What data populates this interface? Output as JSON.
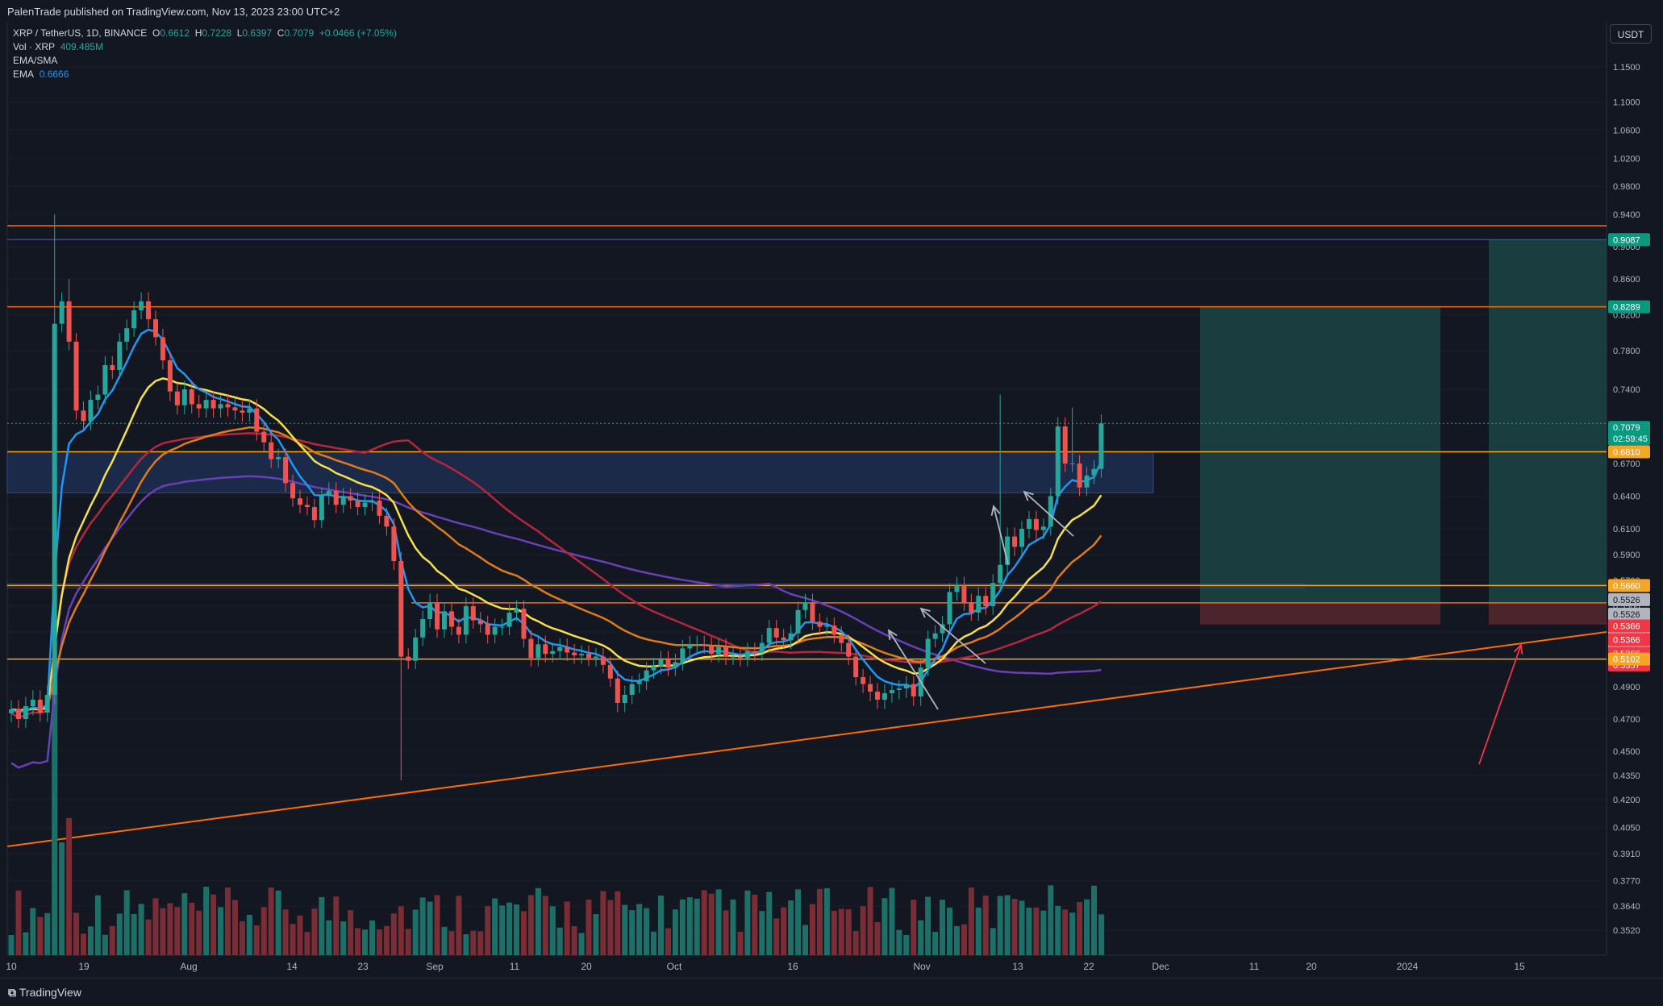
{
  "header": {
    "published": "PalenTrade published on TradingView.com, Nov 13, 2023 23:00 UTC+2"
  },
  "legend": {
    "symbol": "XRP / TetherUS, 1D, BINANCE",
    "o_label": "O",
    "o": "0.6612",
    "h_label": "H",
    "h": "0.7228",
    "l_label": "L",
    "l": "0.6397",
    "c_label": "C",
    "c": "0.7079",
    "change": "+0.0466 (+7.05%)",
    "vol_label": "Vol · XRP",
    "vol": "409.485M",
    "ema_sma_label": "EMA/SMA",
    "ema_label": "EMA",
    "ema": "0.6666"
  },
  "currency_button": "USDT",
  "footer": {
    "brand": "TradingView"
  },
  "colors": {
    "background": "#131722",
    "up": "#26a69a",
    "down": "#ef5350",
    "ema_blue": "#2196f3",
    "ema_yellow": "#f5e04b",
    "ema_orange": "#e07b1a",
    "sma_red": "#b7263b",
    "sma_purple": "#6a3fb8",
    "level_orange": "#ff6d00",
    "level_gold": "#f5a623",
    "level_blue": "#2962ff"
  },
  "chart_data": {
    "type": "candlestick",
    "price_axis_ticks": [
      "1.1500",
      "1.1000",
      "1.0600",
      "1.0200",
      "0.9800",
      "0.9400",
      "0.9000",
      "0.8600",
      "0.8200",
      "0.7800",
      "0.7400",
      "0.6700",
      "0.6400",
      "0.6100",
      "0.5900",
      "0.5700",
      "0.5500",
      "0.5300",
      "0.5100",
      "0.4900",
      "0.4700",
      "0.4500",
      "0.4350",
      "0.4200",
      "0.4050",
      "0.3910",
      "0.3770",
      "0.3640",
      "0.3520"
    ],
    "time_axis_ticks": [
      "10",
      "19",
      "Aug",
      "14",
      "23",
      "Sep",
      "11",
      "20",
      "Oct",
      "16",
      "Nov",
      "13",
      "22",
      "Dec",
      "11",
      "20",
      "2024",
      "15"
    ],
    "price_labels": [
      {
        "value": "0.9087",
        "color": "#089981"
      },
      {
        "value": "0.8289",
        "color": "#089981"
      },
      {
        "value": "0.7079",
        "color": "#089981",
        "sub": "02:59:45"
      },
      {
        "value": "0.6810",
        "color": "#f5a623"
      },
      {
        "value": "0.5660",
        "color": "#f5a623"
      },
      {
        "value": "0.5526",
        "color": "#b2b5be"
      },
      {
        "value": "0.5526",
        "color": "#b2b5be"
      },
      {
        "value": "0.5526",
        "color": "#b2b5be"
      },
      {
        "value": "0.5526",
        "color": "#b2b5be"
      },
      {
        "value": "0.5366",
        "color": "#f23645"
      },
      {
        "value": "0.5366",
        "color": "#f23645"
      },
      {
        "value": "0.5366",
        "color": "#f23645"
      },
      {
        "value": "0.5357",
        "color": "#f23645"
      },
      {
        "value": "0.5102",
        "color": "#f5a623"
      }
    ],
    "horizontal_levels": [
      0.926,
      0.9087,
      0.8289,
      0.681,
      0.566,
      0.5526,
      0.5102
    ],
    "support_zone": [
      0.643,
      0.681
    ],
    "last_price": 0.7079,
    "closes": [
      0.476,
      0.47,
      0.478,
      0.482,
      0.474,
      0.485,
      0.81,
      0.835,
      0.79,
      0.72,
      0.71,
      0.73,
      0.735,
      0.765,
      0.76,
      0.79,
      0.805,
      0.825,
      0.835,
      0.815,
      0.795,
      0.77,
      0.738,
      0.725,
      0.74,
      0.726,
      0.722,
      0.73,
      0.722,
      0.726,
      0.723,
      0.72,
      0.718,
      0.722,
      0.7,
      0.69,
      0.674,
      0.676,
      0.652,
      0.638,
      0.632,
      0.63,
      0.618,
      0.64,
      0.645,
      0.632,
      0.64,
      0.636,
      0.63,
      0.634,
      0.636,
      0.622,
      0.612,
      0.585,
      0.512,
      0.509,
      0.526,
      0.54,
      0.553,
      0.532,
      0.546,
      0.534,
      0.528,
      0.55,
      0.539,
      0.536,
      0.528,
      0.534,
      0.534,
      0.545,
      0.548,
      0.525,
      0.511,
      0.521,
      0.514,
      0.516,
      0.519,
      0.515,
      0.513,
      0.514,
      0.511,
      0.512,
      0.506,
      0.496,
      0.48,
      0.485,
      0.492,
      0.494,
      0.502,
      0.505,
      0.51,
      0.504,
      0.508,
      0.518,
      0.521,
      0.521,
      0.52,
      0.514,
      0.519,
      0.512,
      0.512,
      0.511,
      0.516,
      0.515,
      0.522,
      0.533,
      0.526,
      0.524,
      0.529,
      0.547,
      0.553,
      0.538,
      0.534,
      0.535,
      0.528,
      0.522,
      0.512,
      0.497,
      0.492,
      0.487,
      0.482,
      0.486,
      0.488,
      0.489,
      0.492,
      0.484,
      0.504,
      0.525,
      0.529,
      0.536,
      0.561,
      0.566,
      0.553,
      0.545,
      0.558,
      0.55,
      0.568,
      0.582,
      0.604,
      0.596,
      0.61,
      0.619,
      0.609,
      0.612,
      0.64,
      0.705,
      0.67,
      0.67,
      0.648,
      0.659,
      0.665,
      0.7079
    ],
    "emas": [
      {
        "name": "EMA 9",
        "color": "#2196f3"
      },
      {
        "name": "EMA 21",
        "color": "#f5e04b"
      },
      {
        "name": "EMA 50",
        "color": "#e07b1a"
      },
      {
        "name": "SMA 100",
        "color": "#b7263b"
      },
      {
        "name": "SMA 200",
        "color": "#6a3fb8"
      }
    ]
  }
}
